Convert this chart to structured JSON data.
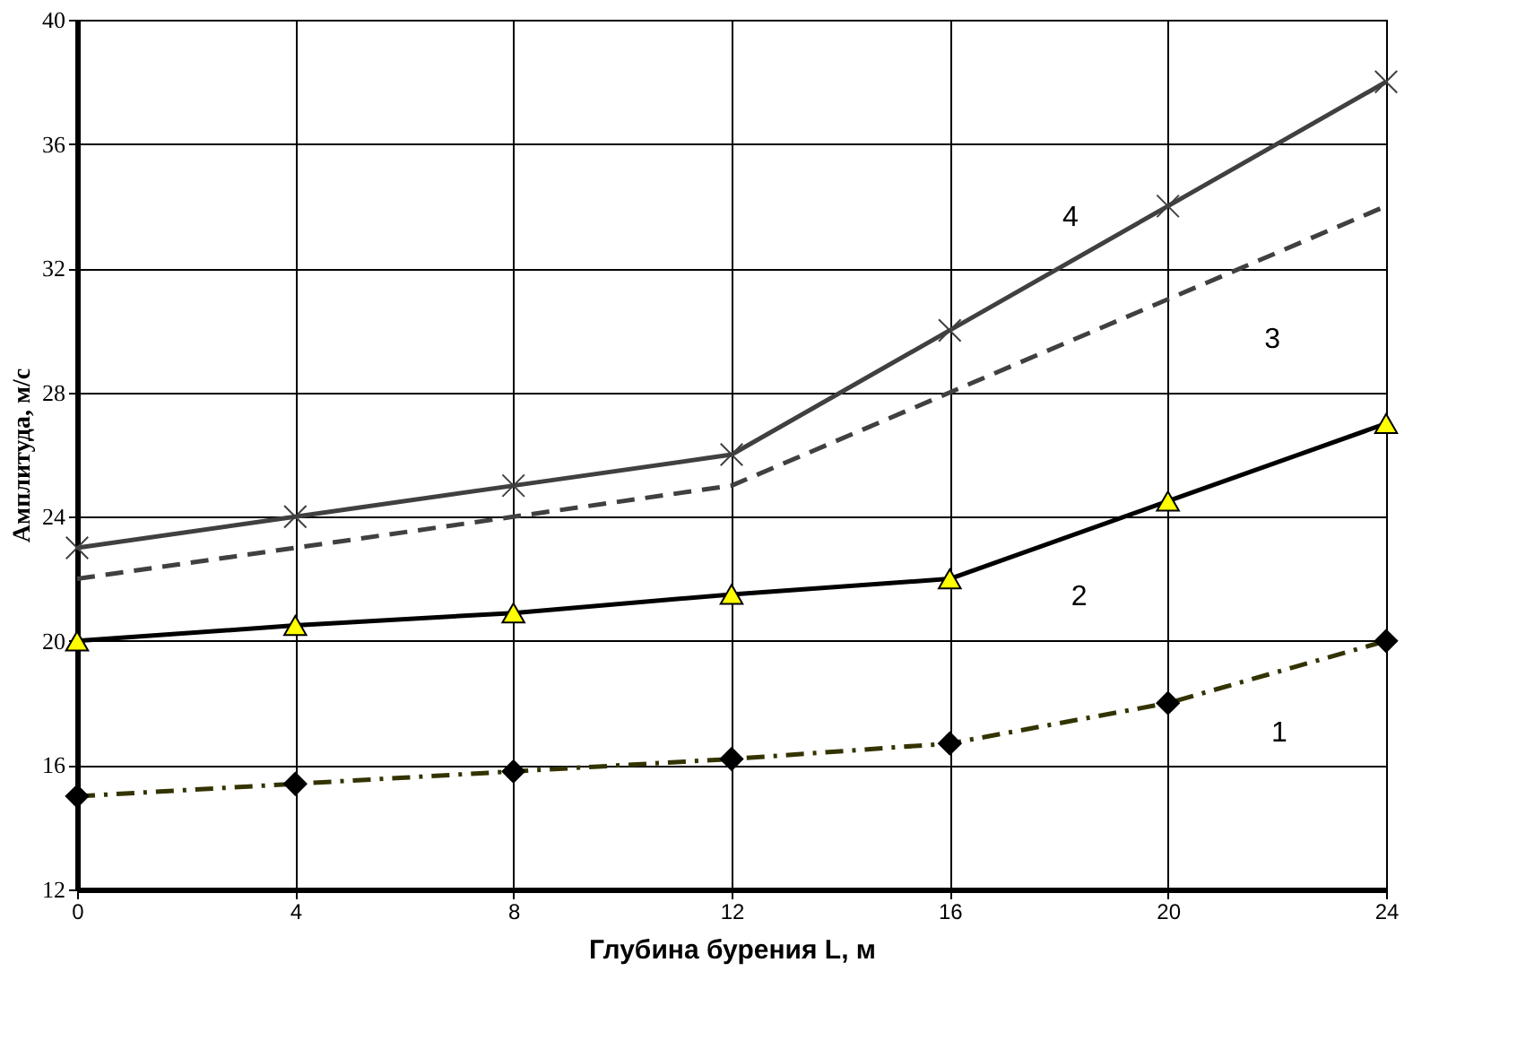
{
  "chart_data": {
    "type": "line",
    "xlabel": "Глубина бурения L, м",
    "ylabel": "Амплитуда, м/с",
    "x": [
      0,
      4,
      8,
      12,
      16,
      20,
      24
    ],
    "xlim": [
      0,
      24
    ],
    "xticks": [
      0,
      4,
      8,
      12,
      16,
      20,
      24
    ],
    "ylim": [
      12,
      40
    ],
    "yticks": [
      12,
      16,
      20,
      24,
      28,
      32,
      36,
      40
    ],
    "grid": true,
    "series": [
      {
        "name": "1",
        "color": "#333300",
        "marker": "diamond",
        "line_style": "dashdot",
        "colors": [
          "#000000",
          "#000000",
          "#000000",
          "#000000",
          "#000000",
          "#000000",
          "#000000"
        ],
        "values": [
          15,
          15.4,
          15.8,
          16.2,
          16.7,
          18,
          20
        ]
      },
      {
        "name": "2",
        "color": "#000000",
        "marker": "triangle",
        "line_style": "solid",
        "colors": [
          "#ffff00",
          "#ffff00",
          "#ffff00",
          "#ffff00",
          "#ffff00",
          "#ffff00",
          "#ffff00"
        ],
        "values": [
          20,
          20.5,
          20.9,
          21.5,
          22,
          24.5,
          27
        ]
      },
      {
        "name": "3",
        "color": "#404040",
        "marker": "none",
        "line_style": "dashed",
        "values": [
          22,
          23,
          24,
          25,
          28,
          31,
          34
        ]
      },
      {
        "name": "4",
        "color": "#404040",
        "marker": "cross",
        "line_style": "solid",
        "values": [
          23,
          24,
          25,
          26,
          30,
          34,
          38
        ]
      }
    ]
  }
}
